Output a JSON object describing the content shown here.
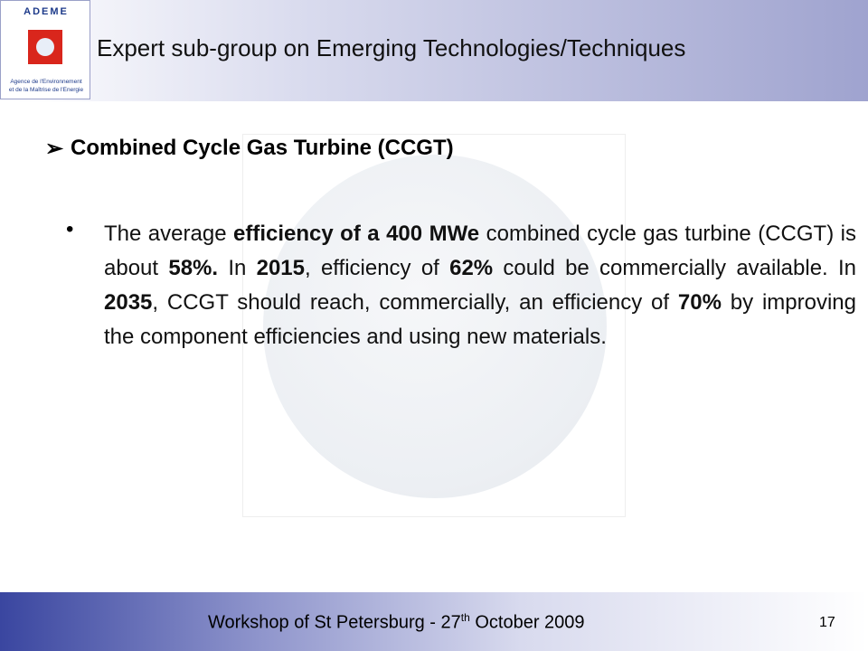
{
  "logo": {
    "name": "ADEME",
    "line1": "Agence de l'Environnement",
    "line2": "et de la Maîtrise de l'Energie"
  },
  "header": {
    "title": "Expert sub-group on Emerging Technologies/Techniques"
  },
  "heading": {
    "marker": "➢",
    "text": "Combined Cycle Gas Turbine (CCGT)"
  },
  "bullet": {
    "marker": "•",
    "runs": [
      {
        "text": "The average ",
        "bold": false
      },
      {
        "text": "efficiency of a 400 MWe",
        "bold": true
      },
      {
        "text": " combined cycle gas turbine (CCGT) is about ",
        "bold": false
      },
      {
        "text": "58%.",
        "bold": true
      },
      {
        "text": " In ",
        "bold": false
      },
      {
        "text": "2015",
        "bold": true
      },
      {
        "text": ", efficiency of ",
        "bold": false
      },
      {
        "text": "62%",
        "bold": true
      },
      {
        "text": " could be commercially available. In ",
        "bold": false
      },
      {
        "text": "2035",
        "bold": true
      },
      {
        "text": ", CCGT should reach, commercially, an efficiency of ",
        "bold": false
      },
      {
        "text": "70%",
        "bold": true
      },
      {
        "text": " by improving the component efficiencies and using new materials.",
        "bold": false
      }
    ]
  },
  "footer": {
    "text": "Workshop of St Petersburg - 27",
    "superscript": "th",
    "text_after": " October 2009",
    "page": "17"
  }
}
